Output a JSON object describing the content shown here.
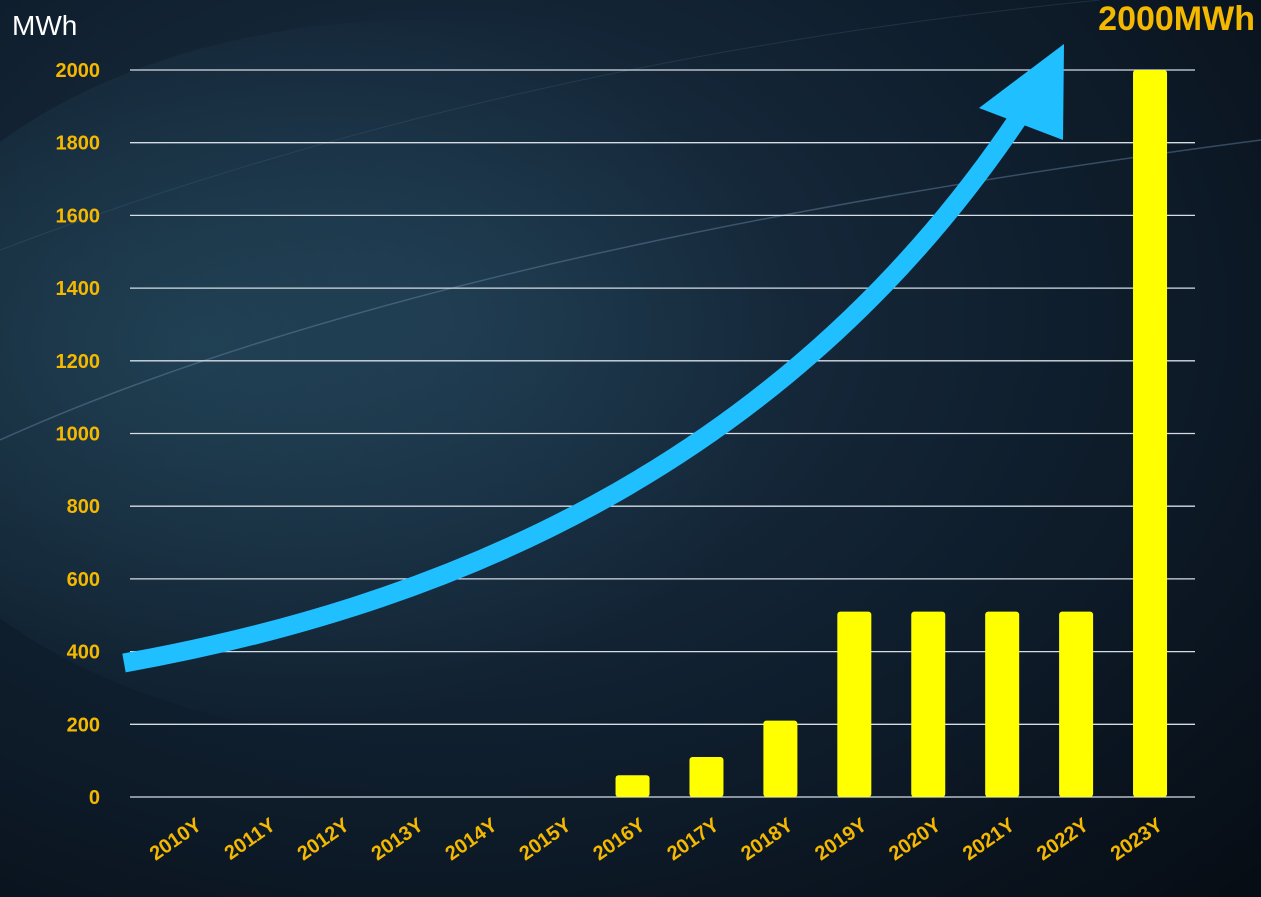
{
  "colors": {
    "bar": "#ffff00",
    "arrow": "#20bfff",
    "tick_label": "#f5b800",
    "callout": "#f5b800",
    "grid": "#d6dde5",
    "unit": "#ffffff"
  },
  "chart_data": {
    "type": "bar",
    "unit_label": "MWh",
    "callout": "2000MWh",
    "categories": [
      "2010Y",
      "2011Y",
      "2012Y",
      "2013Y",
      "2014Y",
      "2015Y",
      "2016Y",
      "2017Y",
      "2018Y",
      "2019Y",
      "2020Y",
      "2021Y",
      "2022Y",
      "2023Y"
    ],
    "values": [
      0,
      0,
      0,
      0,
      0,
      0,
      60,
      110,
      210,
      510,
      510,
      510,
      510,
      2000
    ],
    "ylim": [
      0,
      2000
    ],
    "yticks": [
      0,
      200,
      400,
      600,
      800,
      1000,
      1200,
      1400,
      1600,
      1800,
      2000
    ],
    "grid": true,
    "trend_arrow": true
  }
}
